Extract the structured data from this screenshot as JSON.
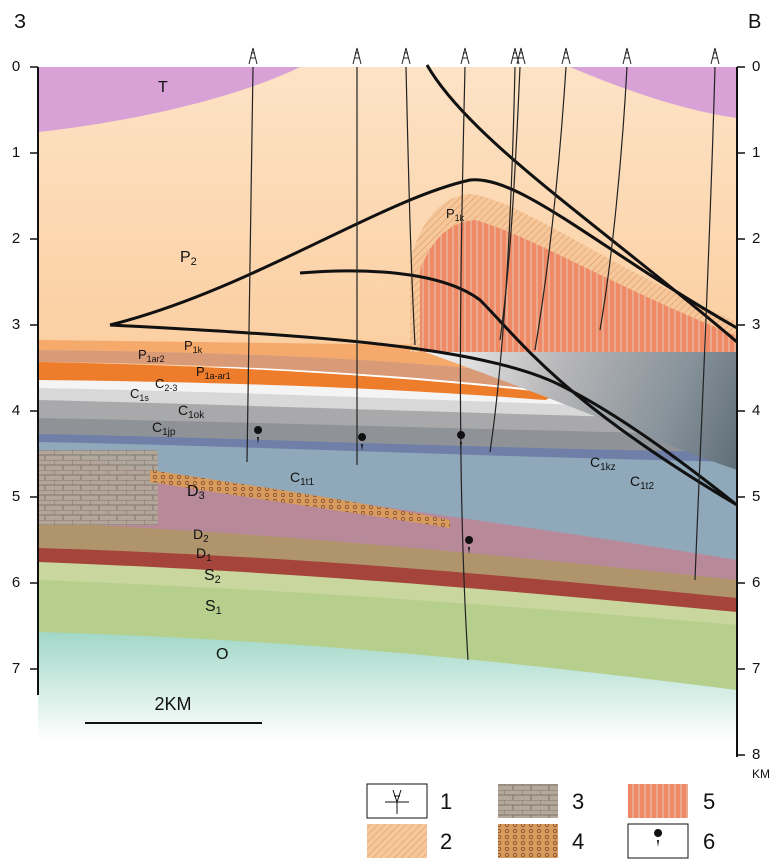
{
  "header": {
    "left_label": "З",
    "right_label": "В"
  },
  "depth_axis": {
    "left_ticks": [
      0,
      1,
      2,
      3,
      4,
      5,
      6,
      7
    ],
    "right_ticks": [
      0,
      1,
      2,
      3,
      4,
      5,
      6,
      7,
      8
    ],
    "unit": "KM"
  },
  "scale_bar": {
    "label": "2KM"
  },
  "layers": [
    {
      "symbol": "T"
    },
    {
      "symbol": "P",
      "index": "2"
    },
    {
      "symbol": "P",
      "index": "1k"
    },
    {
      "symbol": "P",
      "index": "1k"
    },
    {
      "symbol": "P",
      "index": "1ar2"
    },
    {
      "symbol": "P",
      "index": "1a-ar1"
    },
    {
      "symbol": "C",
      "index": "1s"
    },
    {
      "symbol": "C",
      "index": "2-3"
    },
    {
      "symbol": "C",
      "index": "1ok"
    },
    {
      "symbol": "C",
      "index": "1jp"
    },
    {
      "symbol": "C",
      "index": "1t1"
    },
    {
      "symbol": "C",
      "index": "1kz"
    },
    {
      "symbol": "C",
      "index": "1t2"
    },
    {
      "symbol": "D",
      "index": "3"
    },
    {
      "symbol": "D",
      "index": "2"
    },
    {
      "symbol": "D",
      "index": "1"
    },
    {
      "symbol": "S",
      "index": "2"
    },
    {
      "symbol": "S",
      "index": "1"
    },
    {
      "symbol": "O"
    }
  ],
  "legend": [
    {
      "label": "1"
    },
    {
      "label": "2"
    },
    {
      "label": "3"
    },
    {
      "label": "4"
    },
    {
      "label": "5"
    },
    {
      "label": "6"
    }
  ]
}
